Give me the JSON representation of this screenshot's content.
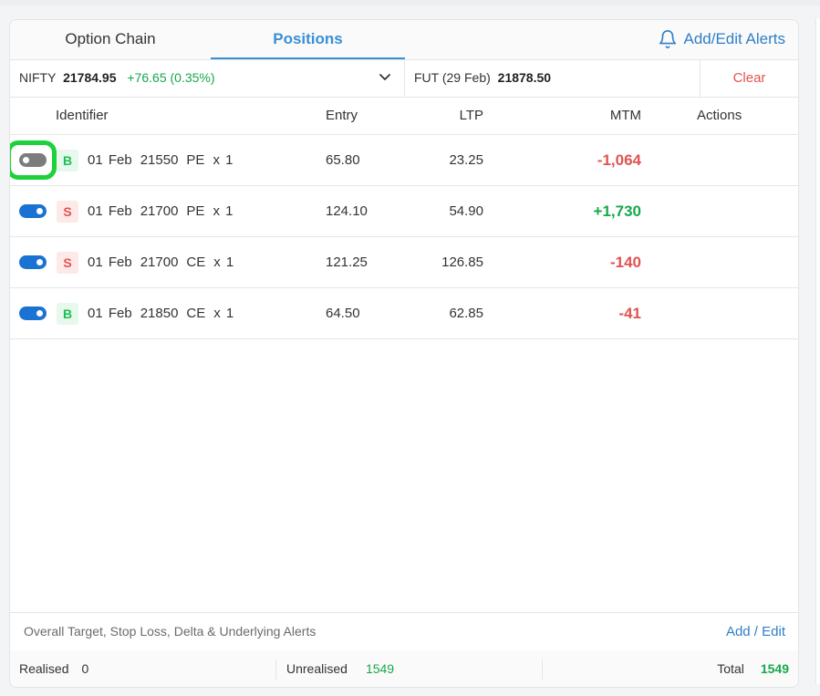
{
  "tabs": {
    "option_chain": "Option Chain",
    "positions": "Positions",
    "alerts_button": "Add/Edit Alerts"
  },
  "ticker": {
    "symbol": "NIFTY",
    "price": "21784.95",
    "change": "+76.65 (0.35%)",
    "futures_label": "FUT (29 Feb)",
    "futures_price": "21878.50",
    "clear": "Clear"
  },
  "table": {
    "headers": {
      "identifier": "Identifier",
      "entry": "Entry",
      "ltp": "LTP",
      "mtm": "MTM",
      "actions": "Actions"
    },
    "rows": [
      {
        "enabled": false,
        "side": "B",
        "date": "01 Feb",
        "strike": "21550",
        "type": "PE",
        "qty": "x 1",
        "entry": "65.80",
        "ltp": "23.25",
        "mtm": "-1,064",
        "mtm_color": "#e05450"
      },
      {
        "enabled": true,
        "side": "S",
        "date": "01 Feb",
        "strike": "21700",
        "type": "PE",
        "qty": "x 1",
        "entry": "124.10",
        "ltp": "54.90",
        "mtm": "+1,730",
        "mtm_color": "#17a84b"
      },
      {
        "enabled": true,
        "side": "S",
        "date": "01 Feb",
        "strike": "21700",
        "type": "CE",
        "qty": "x 1",
        "entry": "121.25",
        "ltp": "126.85",
        "mtm": "-140",
        "mtm_color": "#e05450"
      },
      {
        "enabled": true,
        "side": "B",
        "date": "01 Feb",
        "strike": "21850",
        "type": "CE",
        "qty": "x 1",
        "entry": "64.50",
        "ltp": "62.85",
        "mtm": "-41",
        "mtm_color": "#e05450"
      }
    ]
  },
  "footer": {
    "alerts_text": "Overall Target, Stop Loss, Delta & Underlying Alerts",
    "alerts_edit": "Add / Edit",
    "realised_label": "Realised",
    "realised_value": "0",
    "unrealised_label": "Unrealised",
    "unrealised_value": "1549",
    "total_label": "Total",
    "total_value": "1549"
  },
  "colors": {
    "accent": "#3a8fd6",
    "buy": "#1fbf55",
    "sell": "#e05450",
    "toggle_on": "#1a73d2",
    "highlight": "#1dd13a"
  },
  "icons": [
    "bell-icon",
    "chevron-down-icon"
  ]
}
